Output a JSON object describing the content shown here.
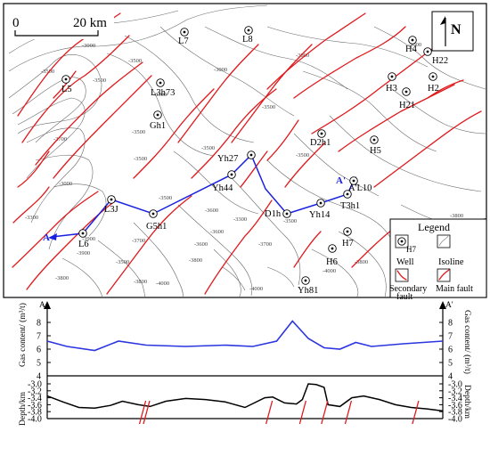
{
  "map": {
    "scale_zero": "0",
    "scale_text": "20 km",
    "north": "N",
    "section_start": "A",
    "section_end": "A'",
    "legend": {
      "title": "Legend",
      "well": "Well",
      "well_sample": "H7",
      "isoline": "Isoline",
      "secondary_fault_1": "Secondary",
      "secondary_fault_2": "fault",
      "main_fault": "Main fault"
    },
    "wells": [
      "L7",
      "L8",
      "H4",
      "H22",
      "L5",
      "L3h73",
      "H3",
      "H2",
      "H21",
      "Gh1",
      "D2h1",
      "H5",
      "Yh27",
      "A'L10",
      "Yh44",
      "L3J",
      "T3h1",
      "Yh14",
      "D1h",
      "G5h1",
      "L6",
      "H7",
      "H6",
      "Yh81"
    ],
    "isoline_labels": [
      "-3000",
      "-3000",
      "-3000",
      "-3500",
      "-3500",
      "-3500",
      "-3000",
      "-3500",
      "-3500",
      "-3700",
      "-3500",
      "-3000",
      "-3500",
      "-3300",
      "-3500",
      "-3600",
      "-3900",
      "-3800",
      "-3500",
      "-3700",
      "-3800",
      "-3800",
      "-4000",
      "-3600",
      "-3500",
      "-3300",
      "-3800",
      "-3500",
      "-3700",
      "-3600",
      "-3900",
      "-3800",
      "-4000",
      "-3500",
      "-4000"
    ]
  },
  "chart_data": [
    {
      "type": "line",
      "title": "",
      "ylabel_left": "Gas content/ (m³/t)",
      "ylabel_right": "Gas content/ (m³/t)",
      "start_label": "A",
      "end_label": "A'",
      "ylim": [
        4,
        8
      ],
      "yticks": [
        "4",
        "5",
        "6",
        "7",
        "8"
      ],
      "series": [
        {
          "x": [
            0,
            0.05,
            0.12,
            0.18,
            0.25,
            0.35,
            0.45,
            0.52,
            0.58,
            0.62,
            0.66,
            0.7,
            0.74,
            0.78,
            0.82,
            0.86,
            0.9,
            0.95,
            1.0
          ],
          "values": [
            6.6,
            6.2,
            5.9,
            6.6,
            6.3,
            6.2,
            6.3,
            6.2,
            6.6,
            8.1,
            6.8,
            6.1,
            6.0,
            6.5,
            6.2,
            6.3,
            6.4,
            6.5,
            6.6
          ]
        }
      ]
    },
    {
      "type": "line",
      "title": "",
      "ylabel_left": "Depth/km",
      "ylabel_right": "Depth/km",
      "ylim": [
        -4.0,
        -3.0
      ],
      "yticks": [
        "-3.0",
        "-3.2",
        "-3.4",
        "-3.6",
        "-3.8",
        "-4.0"
      ],
      "series": [
        {
          "x": [
            0,
            0.04,
            0.08,
            0.12,
            0.16,
            0.19,
            0.23,
            0.26,
            0.3,
            0.35,
            0.4,
            0.45,
            0.5,
            0.55,
            0.57,
            0.6,
            0.63,
            0.645,
            0.66,
            0.68,
            0.7,
            0.71,
            0.74,
            0.77,
            0.8,
            0.84,
            0.88,
            0.92,
            0.96,
            1.0
          ],
          "values": [
            -3.35,
            -3.52,
            -3.68,
            -3.7,
            -3.62,
            -3.5,
            -3.6,
            -3.65,
            -3.5,
            -3.42,
            -3.45,
            -3.52,
            -3.68,
            -3.4,
            -3.38,
            -3.55,
            -3.58,
            -3.45,
            -3.0,
            -3.02,
            -3.1,
            -3.6,
            -3.65,
            -3.4,
            -3.35,
            -3.45,
            -3.6,
            -3.68,
            -3.72,
            -3.78
          ]
        }
      ],
      "faults_x": [
        0.24,
        0.25,
        0.56,
        0.645,
        0.7,
        0.76,
        0.93
      ]
    }
  ]
}
